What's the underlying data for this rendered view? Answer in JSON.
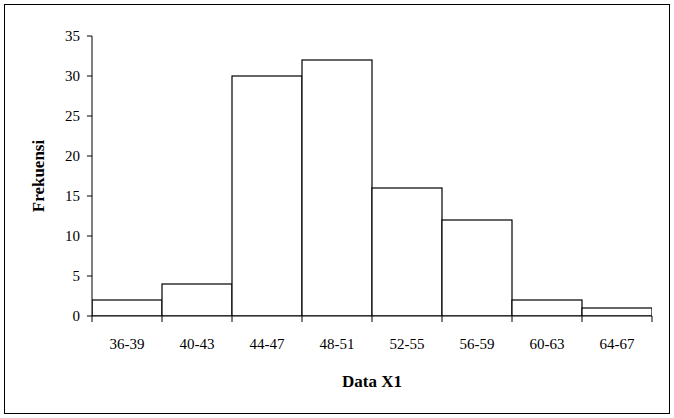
{
  "chart_data": {
    "type": "bar",
    "x_label": "Data X1",
    "y_label": "Frekuensi",
    "categories": [
      "36-39",
      "40-43",
      "44-47",
      "48-51",
      "52-55",
      "56-59",
      "60-63",
      "64-67"
    ],
    "values": [
      2,
      4,
      30,
      32,
      16,
      12,
      2,
      1
    ],
    "color": "#ffffff",
    "ylim": [
      0,
      35
    ],
    "yticks": [
      0,
      5,
      10,
      15,
      20,
      25,
      30,
      35
    ],
    "grid": false
  }
}
